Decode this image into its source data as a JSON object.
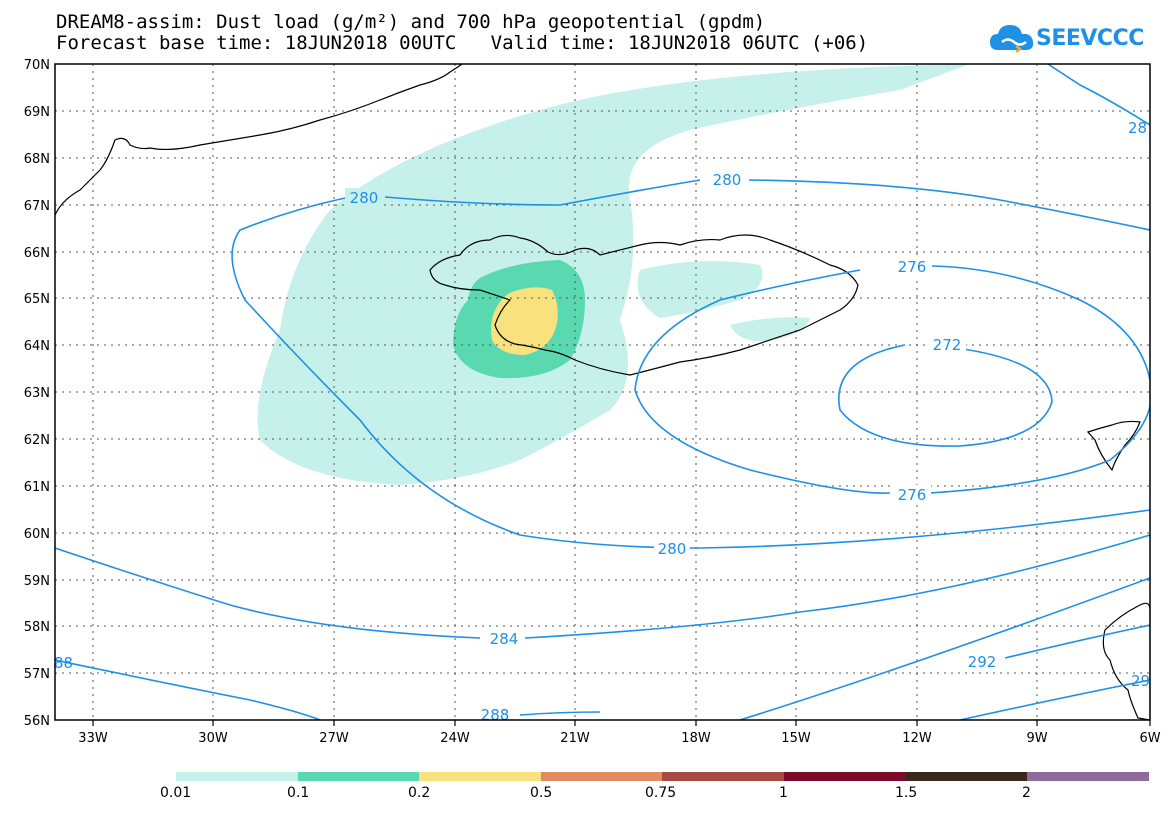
{
  "title_line1": "DREAM8-assim: Dust load (g/m²) and 700 hPa geopotential (gpdm)",
  "title_line2": "Forecast base time: 18JUN2018 00UTC   Valid time: 18JUN2018 06UTC (+06)",
  "logo_text": "SEEVCCC",
  "lat_labels": [
    "70N",
    "69N",
    "68N",
    "67N",
    "66N",
    "65N",
    "64N",
    "63N",
    "62N",
    "61N",
    "60N",
    "59N",
    "58N",
    "57N",
    "56N"
  ],
  "lon_labels": [
    "33W",
    "30W",
    "27W",
    "24W",
    "21W",
    "18W",
    "15W",
    "12W",
    "9W",
    "6W"
  ],
  "contour_labels": {
    "c280_top": "280",
    "c280_right": "280",
    "c280_bottom": "280",
    "c276_top": "276",
    "c276_bottom": "276",
    "c272": "272",
    "c284": "284",
    "c288_left": "88",
    "c288_bottom": "288",
    "c292": "292",
    "c28_edge": "28",
    "c29_edge": "29"
  },
  "legend": {
    "labels": [
      "0.01",
      "0.1",
      "0.2",
      "0.5",
      "0.75",
      "1",
      "1.5",
      "2"
    ],
    "colors": [
      "#c6f1ea",
      "#5ad9b0",
      "#f7e27e",
      "#e08c5e",
      "#a84b45",
      "#7d0b2d",
      "#3a2717",
      "#8e6b9c"
    ]
  },
  "colors": {
    "contour": "#1e90e6",
    "dust_low": "#c6f1ea",
    "dust_mid": "#5ad9b0",
    "dust_high": "#f7e27e"
  }
}
